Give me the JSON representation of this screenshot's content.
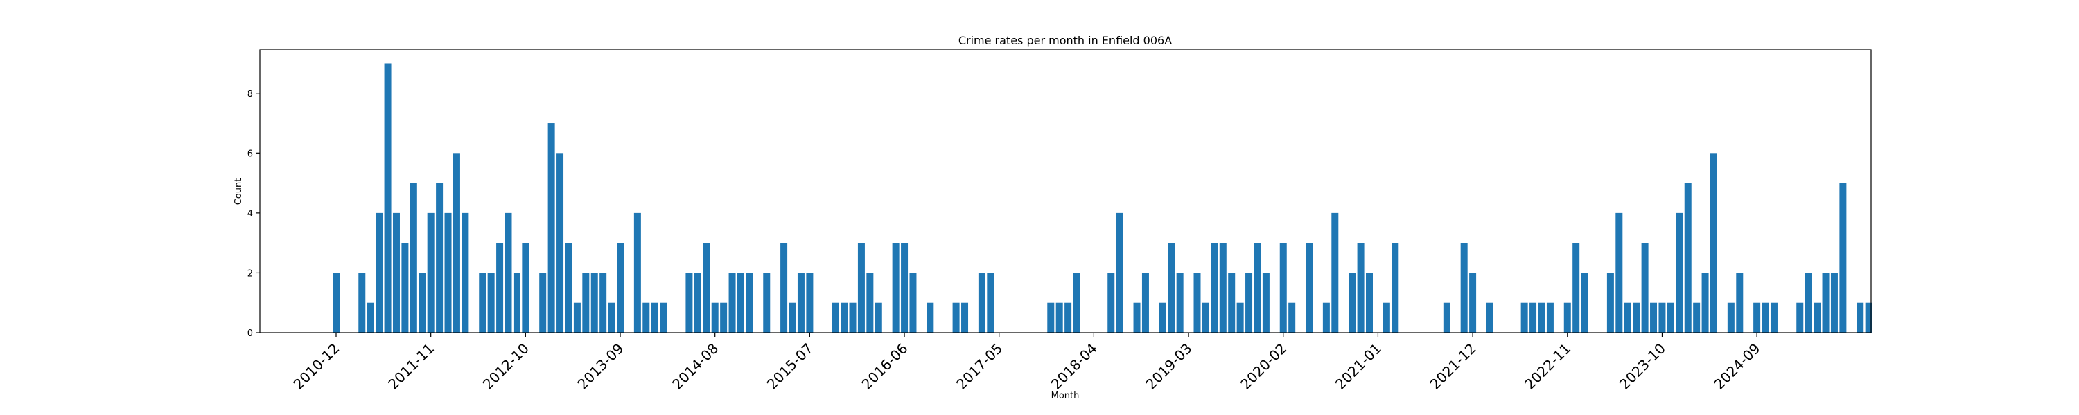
{
  "chart_data": {
    "type": "bar",
    "title": "Crime rates per month in Enfield 006A",
    "xlabel": "Month",
    "ylabel": "Count",
    "ylim": [
      0,
      9.45
    ],
    "yticks": [
      0,
      2,
      4,
      6,
      8
    ],
    "xticks": [
      "2010-12",
      "2011-11",
      "2012-10",
      "2013-09",
      "2014-08",
      "2015-07",
      "2016-06",
      "2017-05",
      "2018-04",
      "2019-03",
      "2020-02",
      "2021-01",
      "2021-12",
      "2022-11",
      "2023-10",
      "2024-09"
    ],
    "grid": false,
    "bar_color": "#1f77b4",
    "x_start": "2010-12",
    "values": [
      2,
      0,
      0,
      2,
      1,
      4,
      9,
      4,
      3,
      5,
      2,
      4,
      5,
      4,
      6,
      4,
      0,
      2,
      2,
      3,
      4,
      2,
      3,
      0,
      2,
      7,
      6,
      3,
      1,
      2,
      2,
      2,
      1,
      3,
      0,
      4,
      1,
      1,
      1,
      0,
      0,
      2,
      2,
      3,
      1,
      1,
      2,
      2,
      2,
      0,
      2,
      0,
      3,
      1,
      2,
      2,
      0,
      0,
      1,
      1,
      1,
      3,
      2,
      1,
      0,
      3,
      3,
      2,
      0,
      1,
      0,
      0,
      1,
      1,
      0,
      2,
      2,
      0,
      0,
      0,
      0,
      0,
      0,
      1,
      1,
      1,
      2,
      0,
      0,
      0,
      2,
      4,
      0,
      1,
      2,
      0,
      1,
      3,
      2,
      0,
      2,
      1,
      3,
      3,
      2,
      1,
      2,
      3,
      2,
      0,
      3,
      1,
      0,
      3,
      0,
      1,
      4,
      0,
      2,
      3,
      2,
      0,
      1,
      3,
      0,
      0,
      0,
      0,
      0,
      1,
      0,
      3,
      2,
      0,
      1,
      0,
      0,
      0,
      1,
      1,
      1,
      1,
      0,
      1,
      3,
      2,
      0,
      0,
      2,
      4,
      1,
      1,
      3,
      1,
      1,
      1,
      4,
      5,
      1,
      2,
      6,
      0,
      1,
      2,
      0,
      1,
      1,
      1,
      0,
      0,
      1,
      2,
      1,
      2,
      2,
      5,
      0,
      1,
      1
    ]
  }
}
